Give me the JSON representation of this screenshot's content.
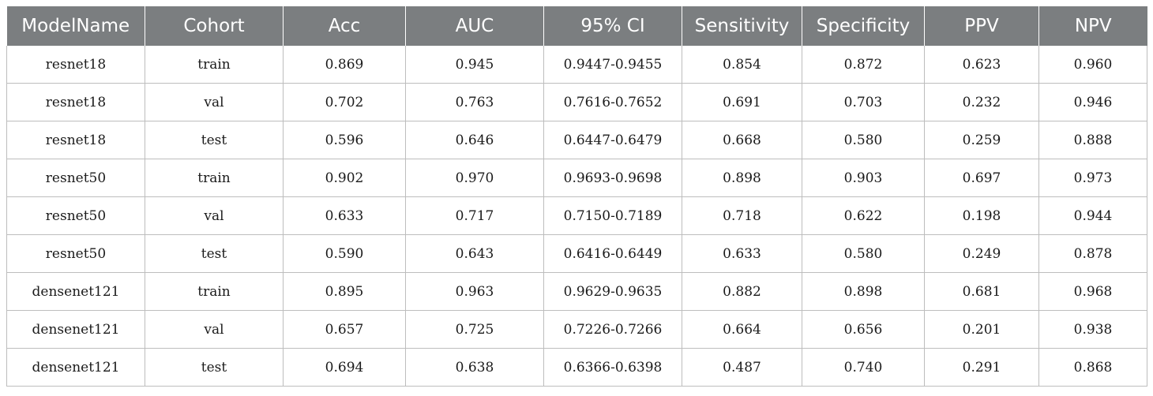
{
  "table": {
    "headers": [
      "ModelName",
      "Cohort",
      "Acc",
      "AUC",
      "95% CI",
      "Sensitivity",
      "Specificity",
      "PPV",
      "NPV"
    ],
    "rows": [
      [
        "resnet18",
        "train",
        "0.869",
        "0.945",
        "0.9447-0.9455",
        "0.854",
        "0.872",
        "0.623",
        "0.960"
      ],
      [
        "resnet18",
        "val",
        "0.702",
        "0.763",
        "0.7616-0.7652",
        "0.691",
        "0.703",
        "0.232",
        "0.946"
      ],
      [
        "resnet18",
        "test",
        "0.596",
        "0.646",
        "0.6447-0.6479",
        "0.668",
        "0.580",
        "0.259",
        "0.888"
      ],
      [
        "resnet50",
        "train",
        "0.902",
        "0.970",
        "0.9693-0.9698",
        "0.898",
        "0.903",
        "0.697",
        "0.973"
      ],
      [
        "resnet50",
        "val",
        "0.633",
        "0.717",
        "0.7150-0.7189",
        "0.718",
        "0.622",
        "0.198",
        "0.944"
      ],
      [
        "resnet50",
        "test",
        "0.590",
        "0.643",
        "0.6416-0.6449",
        "0.633",
        "0.580",
        "0.249",
        "0.878"
      ],
      [
        "densenet121",
        "train",
        "0.895",
        "0.963",
        "0.9629-0.9635",
        "0.882",
        "0.898",
        "0.681",
        "0.968"
      ],
      [
        "densenet121",
        "val",
        "0.657",
        "0.725",
        "0.7226-0.7266",
        "0.664",
        "0.656",
        "0.201",
        "0.938"
      ],
      [
        "densenet121",
        "test",
        "0.694",
        "0.638",
        "0.6366-0.6398",
        "0.487",
        "0.740",
        "0.291",
        "0.868"
      ]
    ]
  },
  "colors": {
    "header_bg": "#7b7e80",
    "header_text": "#ffffff",
    "grid_line": "#bdbdbd"
  }
}
